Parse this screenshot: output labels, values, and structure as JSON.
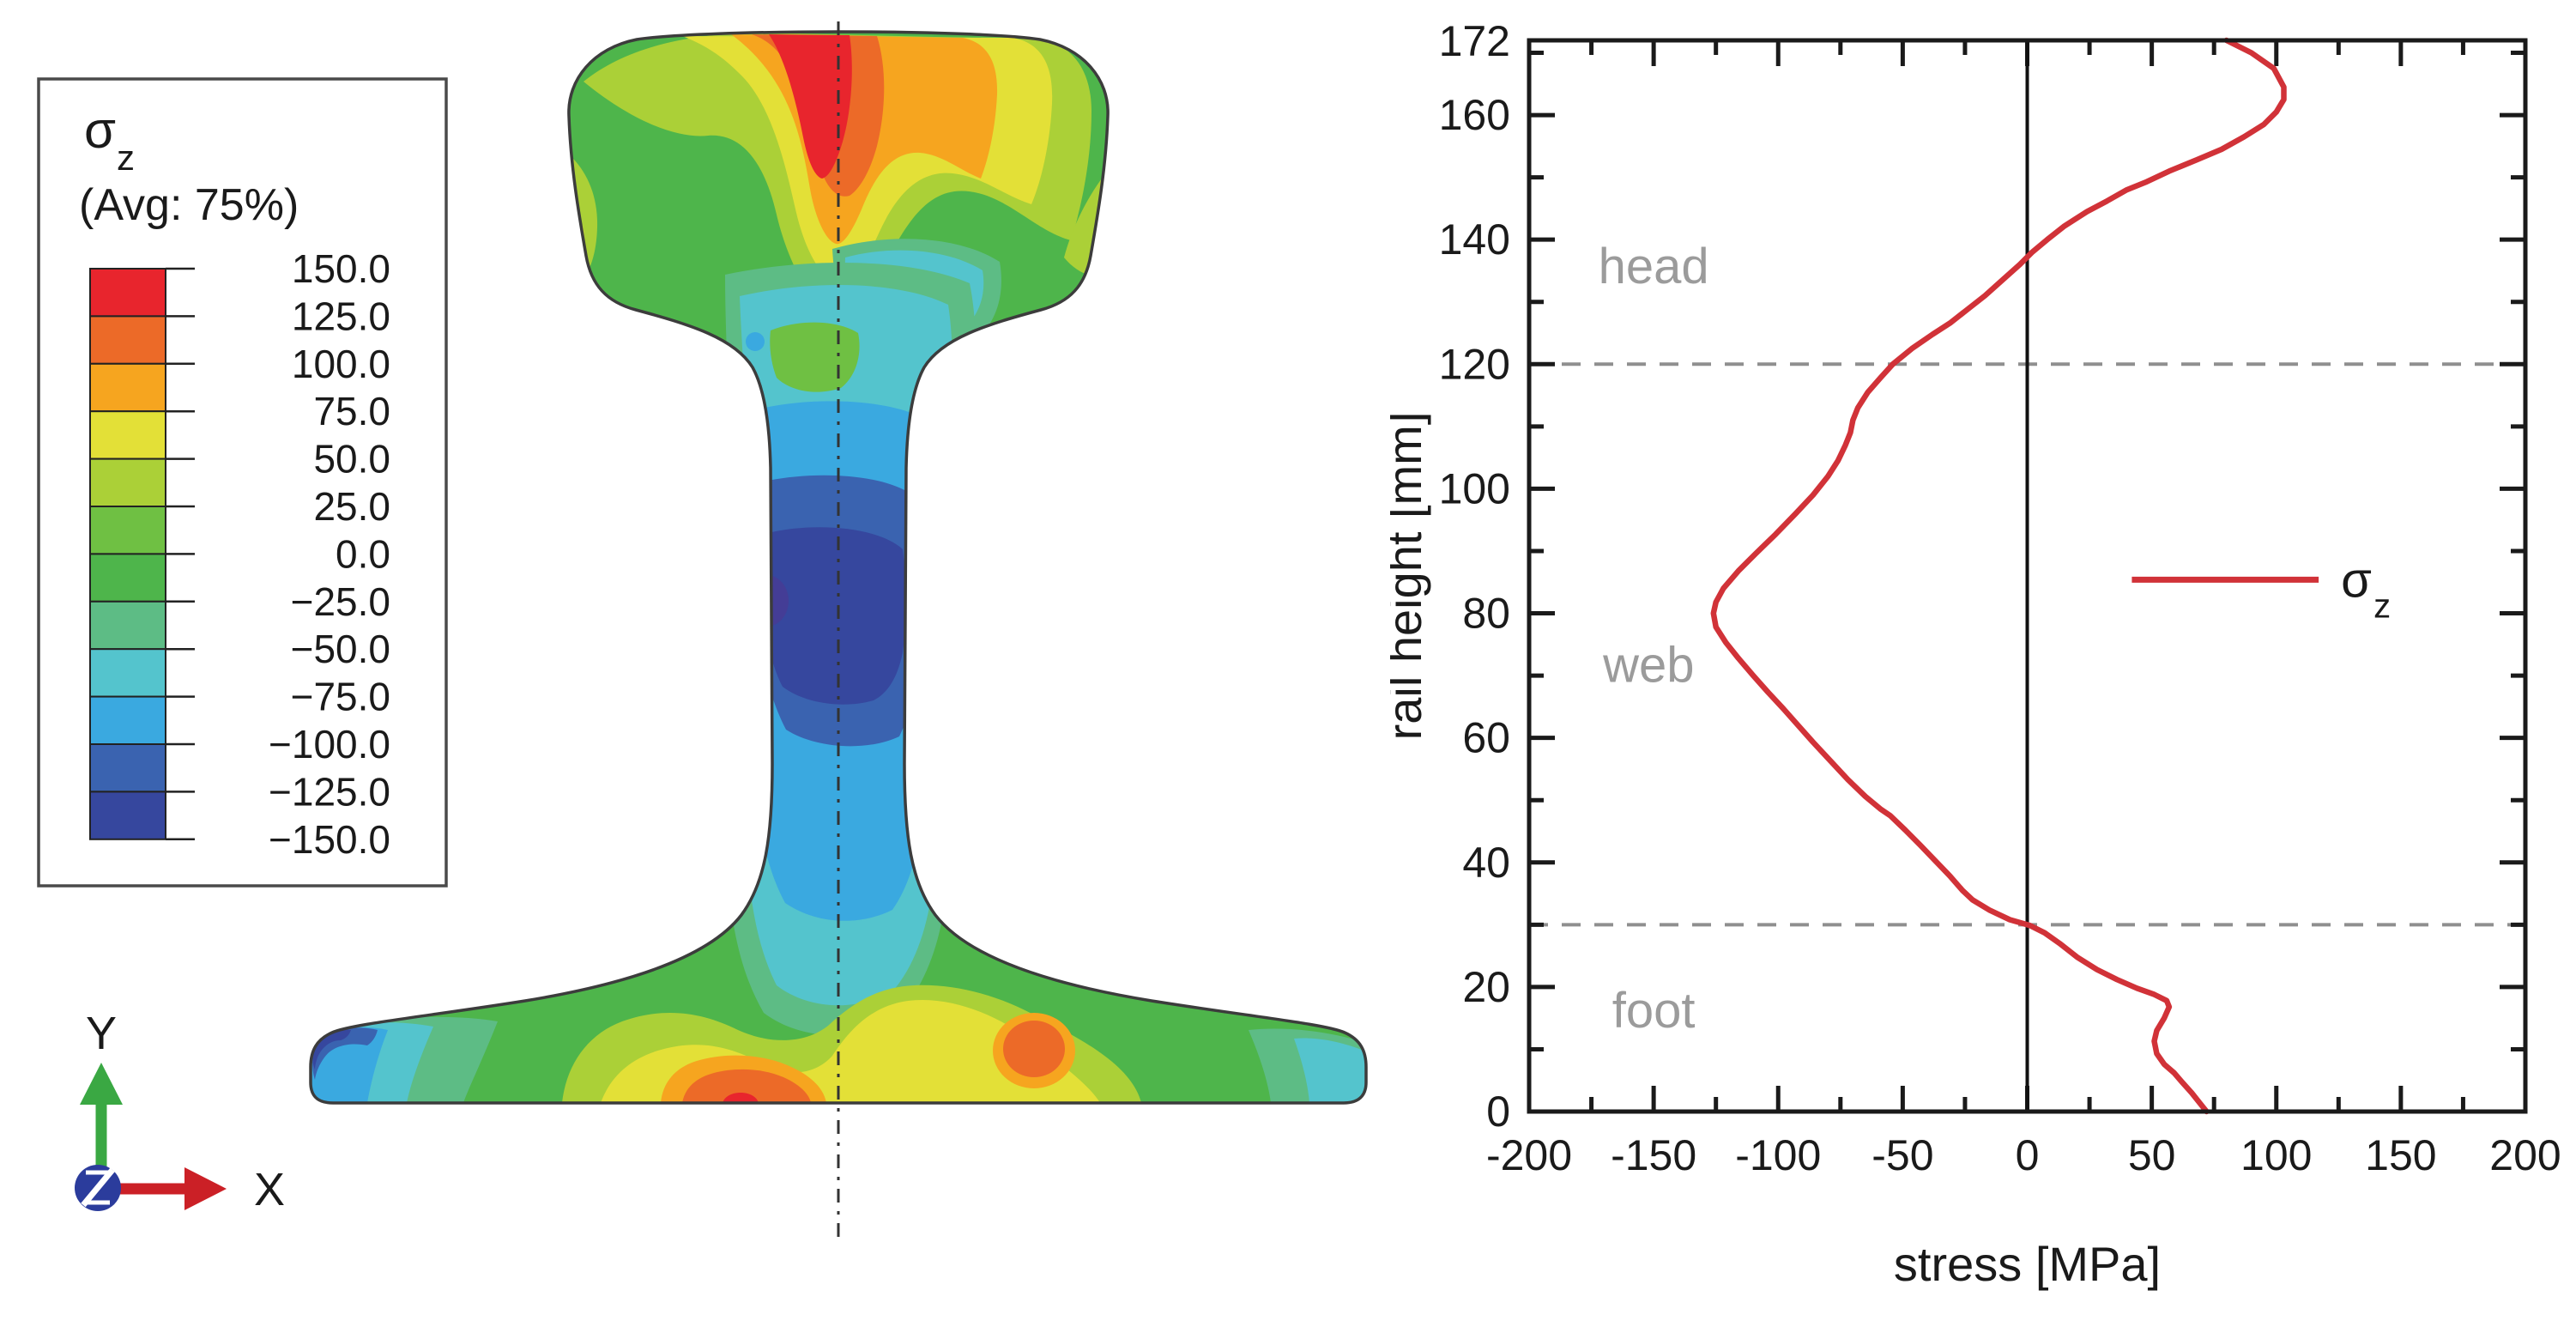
{
  "fem": {
    "legend": {
      "title": "σ",
      "title_sub": "z",
      "subtitle": "(Avg: 75%)",
      "levels": [
        "150.0",
        "125.0",
        "100.0",
        "75.0",
        "50.0",
        "25.0",
        "0.0",
        "−25.0",
        "−50.0",
        "−75.0",
        "−100.0",
        "−125.0",
        "−150.0"
      ],
      "band_colors": [
        "#e8252d",
        "#ec6a28",
        "#f6a51f",
        "#e3e037",
        "#abd037",
        "#6fc043",
        "#4eb54b",
        "#5dbc85",
        "#54c4cd",
        "#3aa9e0",
        "#3a63b0",
        "#36479e"
      ],
      "deep_spot_color": "#443d96"
    },
    "triad": {
      "x_label": "X",
      "y_label": "Y",
      "x_color": "#cb2026",
      "y_color": "#3aa843",
      "z_color": "#2b3c9c"
    }
  },
  "chart_data": {
    "type": "line",
    "xlabel": "stress [MPa]",
    "ylabel": "rail height [mm]",
    "xlim": [
      -200,
      200
    ],
    "ylim": [
      0,
      172
    ],
    "x_major_ticks": [
      -200,
      -150,
      -100,
      -50,
      0,
      50,
      100,
      150,
      200
    ],
    "x_minor_ticks": [
      -175,
      -125,
      -75,
      -25,
      25,
      75,
      125,
      175
    ],
    "y_major_ticks": [
      0,
      20,
      40,
      60,
      80,
      100,
      120,
      140,
      160
    ],
    "y_minor_ticks": [
      10,
      30,
      50,
      70,
      90,
      110,
      130,
      150,
      170
    ],
    "y_top_label": "172",
    "zero_line_x": 0,
    "boundary_lines_y": [
      120,
      30
    ],
    "grid": "off",
    "regions": [
      {
        "label": "head",
        "x": -150,
        "y": 133
      },
      {
        "label": "web",
        "x": -152,
        "y": 69
      },
      {
        "label": "foot",
        "x": -150,
        "y": 13.5
      }
    ],
    "legend": {
      "x1": 42,
      "x2": 117,
      "y": 85.4,
      "label": "σ",
      "sub": "z"
    },
    "series": [
      {
        "name": "σz",
        "color": "#d13238",
        "points": [
          [
            80,
            172
          ],
          [
            90,
            170
          ],
          [
            99,
            167.5
          ],
          [
            103,
            164.5
          ],
          [
            103,
            162.5
          ],
          [
            100,
            160.5
          ],
          [
            95,
            158.5
          ],
          [
            87,
            156.5
          ],
          [
            78,
            154.5
          ],
          [
            68,
            152.8
          ],
          [
            57,
            151
          ],
          [
            48,
            149.3
          ],
          [
            40,
            148
          ],
          [
            32,
            146.2
          ],
          [
            24,
            144.5
          ],
          [
            15,
            142.2
          ],
          [
            8,
            140
          ],
          [
            2,
            138
          ],
          [
            -3,
            136
          ],
          [
            -10,
            133.5
          ],
          [
            -17,
            131
          ],
          [
            -24,
            128.8
          ],
          [
            -31,
            126.6
          ],
          [
            -38,
            124.8
          ],
          [
            -46,
            122.6
          ],
          [
            -54,
            120
          ],
          [
            -59,
            117.8
          ],
          [
            -64,
            115.5
          ],
          [
            -68,
            113
          ],
          [
            -70,
            111
          ],
          [
            -71,
            109
          ],
          [
            -73,
            107
          ],
          [
            -76,
            104.5
          ],
          [
            -80,
            102
          ],
          [
            -86,
            99
          ],
          [
            -93,
            96
          ],
          [
            -101,
            92.7
          ],
          [
            -109,
            89.6
          ],
          [
            -116,
            86.8
          ],
          [
            -122,
            84
          ],
          [
            -125,
            81.8
          ],
          [
            -126,
            80
          ],
          [
            -125,
            77.8
          ],
          [
            -121,
            75.3
          ],
          [
            -116,
            72.8
          ],
          [
            -110,
            70
          ],
          [
            -104,
            67.3
          ],
          [
            -98,
            64.7
          ],
          [
            -92,
            62
          ],
          [
            -86,
            59.3
          ],
          [
            -79,
            56.3
          ],
          [
            -72,
            53.3
          ],
          [
            -65,
            50.6
          ],
          [
            -59,
            48.6
          ],
          [
            -55,
            47.5
          ],
          [
            -49,
            45.2
          ],
          [
            -43,
            42.8
          ],
          [
            -37,
            40.3
          ],
          [
            -31,
            37.8
          ],
          [
            -26,
            35.5
          ],
          [
            -22,
            34
          ],
          [
            -15,
            32.3
          ],
          [
            -7,
            30.8
          ],
          [
            1,
            29.9
          ],
          [
            7,
            28.7
          ],
          [
            13,
            27
          ],
          [
            20,
            24.8
          ],
          [
            28,
            22.8
          ],
          [
            36,
            21.2
          ],
          [
            44,
            19.8
          ],
          [
            51,
            18.8
          ],
          [
            56,
            17.8
          ],
          [
            57,
            16.8
          ],
          [
            55,
            15
          ],
          [
            52,
            13
          ],
          [
            51,
            11.3
          ],
          [
            52,
            9.3
          ],
          [
            55,
            7.6
          ],
          [
            59,
            6.2
          ],
          [
            62,
            4.8
          ],
          [
            66,
            3
          ],
          [
            69,
            1.5
          ],
          [
            72,
            0
          ]
        ]
      }
    ]
  }
}
